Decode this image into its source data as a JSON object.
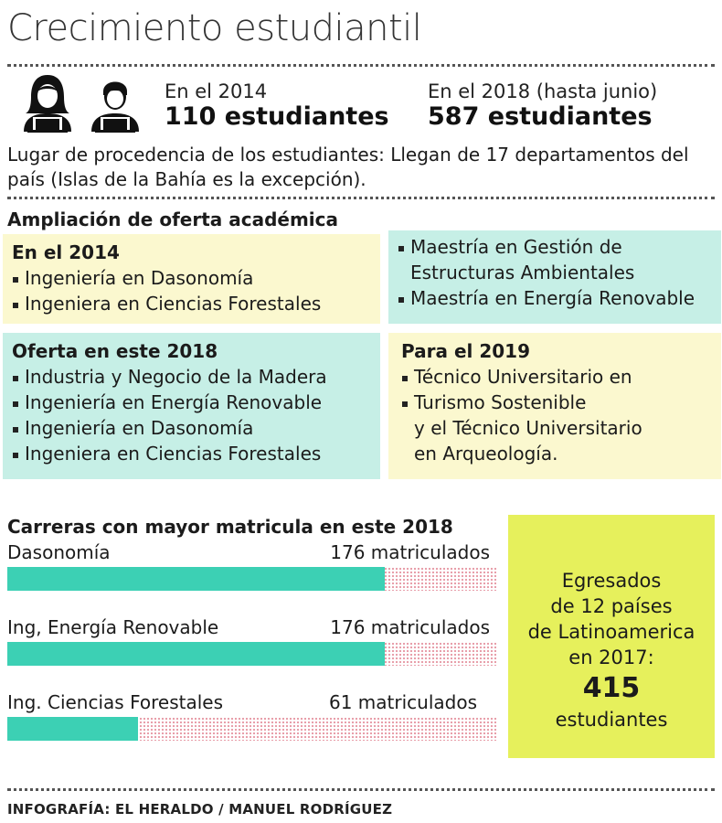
{
  "title": "Crecimiento estudiantil",
  "stats": {
    "y2014_label": "En el 2014",
    "y2014_value": "110 estudiantes",
    "y2018_label": "En el 2018 (hasta junio)",
    "y2018_value": "587 estudiantes"
  },
  "origin_text": "Lugar de procedencia de los estudiantes: Llegan de 17 departamentos del país (Islas de la Bahía es la excepción).",
  "oferta": {
    "heading": "Ampliación de oferta académica",
    "box2014": {
      "title": "En el 2014",
      "items": [
        "Ingeniería en Dasonomía",
        "Ingeniera en Ciencias Forestales"
      ]
    },
    "box_maestrias": {
      "items": [
        "Maestría en Gestión de",
        "Estructuras Ambientales",
        "Maestría en Energía Renovable"
      ]
    },
    "box2018": {
      "title": "Oferta en este 2018",
      "items": [
        "Industria y Negocio de la Madera",
        "Ingeniería en Energía Renovable",
        "Ingeniería en Dasonomía",
        "Ingeniera en Ciencias Forestales"
      ]
    },
    "box2019": {
      "title": "Para el 2019",
      "items": [
        "Técnico Universitario en",
        "Turismo Sostenible",
        "y el Técnico Universitario",
        "en  Arqueología."
      ]
    }
  },
  "carreras": {
    "heading": "Carreras con mayor matricula en este 2018",
    "items": [
      {
        "label": "Dasonomía",
        "count_text": "176 matriculados",
        "value": 176
      },
      {
        "label": "Ing, Energía Renovable",
        "count_text": "176 matriculados",
        "value": 176
      },
      {
        "label": "Ing. Ciencias Forestales",
        "count_text": "61 matriculados",
        "value": 61
      }
    ]
  },
  "egresados": {
    "line1": "Egresados",
    "line2": "de 12 países",
    "line3": "de Latinoamerica",
    "line4": "en 2017:",
    "number": "415",
    "unit": "estudiantes"
  },
  "credit": "INFOGRAFÍA: EL HERALDO / MANUEL RODRÍGUEZ",
  "colors": {
    "bar": "#3cd0b4",
    "yellow_box": "#fbf8cf",
    "teal_box": "#c6efe6",
    "egresados_box": "#e6f05c"
  },
  "icons": [
    "female-student-icon",
    "male-student-icon"
  ]
}
